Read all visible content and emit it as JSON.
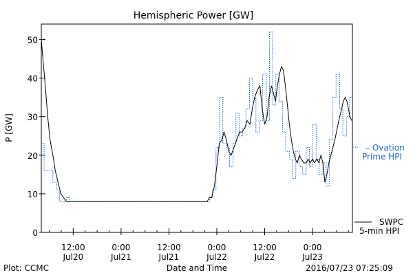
{
  "chart_data": {
    "type": "line",
    "title": "Hemispheric Power [GW]",
    "xlabel": "Date and Time",
    "ylabel": "P [GW]",
    "ylim": [
      0,
      54
    ],
    "xlim": [
      4,
      82
    ],
    "y_ticks": [
      0,
      10,
      20,
      30,
      40,
      50
    ],
    "x_ticks": [
      {
        "x": 12,
        "time": "12:00",
        "date": "Jul20"
      },
      {
        "x": 24,
        "time": "0:00",
        "date": "Jul21"
      },
      {
        "x": 36,
        "time": "12:00",
        "date": "Jul21"
      },
      {
        "x": 48,
        "time": "0:00",
        "date": "Jul22"
      },
      {
        "x": 60,
        "time": "12:00",
        "date": "Jul22"
      },
      {
        "x": 72,
        "time": "0:00",
        "date": "Jul23"
      }
    ],
    "series": [
      {
        "name": "Ovation Prime HPI",
        "color": "#1f66c8",
        "style": "dotted-step",
        "x": [
          4,
          4.7,
          6.9,
          7.8,
          8.6,
          10.3,
          11.0,
          45.3,
          46.2,
          46.9,
          47.8,
          48.7,
          49.5,
          50.4,
          51.2,
          52.1,
          52.8,
          53.6,
          54.5,
          55.3,
          56.2,
          57.0,
          57.8,
          58.7,
          59.5,
          60.4,
          61.2,
          62.0,
          62.8,
          63.6,
          64.5,
          65.3,
          66.2,
          67.0,
          67.8,
          68.7,
          69.5,
          70.4,
          71.2,
          72.0,
          72.9,
          73.7,
          74.6,
          75.4,
          76.2,
          77.1,
          77.9,
          78.8,
          79.6,
          80.5,
          81.3
        ],
        "y": [
          23,
          16,
          13,
          11,
          8,
          9,
          8,
          8,
          9,
          11,
          22,
          35,
          23,
          22,
          17,
          23,
          31,
          25,
          27,
          32,
          40,
          35,
          26,
          29,
          41,
          29,
          52,
          33,
          41,
          34,
          26,
          21,
          19,
          14,
          21,
          17,
          15,
          22,
          17,
          28,
          19,
          15,
          18,
          12,
          24,
          35,
          41,
          32,
          25,
          30,
          35
        ]
      },
      {
        "name": "SWPC 5-min HPI",
        "color": "#000000",
        "style": "solid",
        "x": [
          4,
          4.4,
          5.0,
          5.6,
          6.2,
          6.9,
          7.5,
          8.2,
          8.9,
          9.6,
          10.3,
          11.0,
          11.8,
          45.6,
          46.1,
          46.7,
          47.4,
          48.1,
          48.6,
          49.3,
          49.8,
          50.4,
          51.0,
          51.6,
          52.3,
          53.0,
          53.7,
          54.3,
          55.0,
          55.6,
          56.3,
          56.9,
          57.5,
          58.2,
          58.8,
          59.4,
          60.0,
          60.6,
          61.1,
          61.7,
          62.2,
          62.7,
          63.2,
          63.7,
          64.2,
          64.7,
          65.2,
          65.7,
          66.2,
          66.7,
          67.2,
          67.7,
          68.2,
          68.7,
          69.2,
          69.8,
          70.4,
          70.9,
          71.4,
          72.0,
          72.5,
          73.1,
          73.6,
          74.1,
          74.6,
          75.1,
          75.6,
          76.1,
          76.6,
          77.1,
          77.6,
          78.0,
          78.4,
          78.8,
          79.3,
          79.7,
          80.2,
          80.6,
          81.0,
          81.4,
          81.8
        ],
        "y": [
          50,
          45,
          38,
          30,
          24,
          20,
          16,
          13,
          10,
          9,
          8,
          8,
          8,
          8,
          9,
          9,
          12,
          18,
          23,
          24,
          26,
          24,
          21,
          20,
          22,
          24,
          26,
          26,
          27,
          29,
          28,
          32,
          35,
          37,
          38,
          32,
          28,
          30,
          35,
          38,
          36,
          34,
          38,
          41,
          43,
          42,
          38,
          33,
          28,
          24,
          21,
          19,
          18,
          20,
          19,
          18,
          18,
          19,
          18,
          19,
          18,
          19,
          18,
          20,
          18,
          13,
          15,
          18,
          20,
          22,
          24,
          26,
          28,
          30,
          32,
          34,
          35,
          34,
          32,
          30,
          29
        ]
      }
    ],
    "legend_position": "right",
    "grid": false
  },
  "legend": {
    "ovation_line1": "– Ovation",
    "ovation_line2": "Prime HPI",
    "swpc_line1": "SWPC",
    "swpc_line2": "5-min HPI"
  },
  "footer": {
    "left": "Plot: CCMC",
    "right": "2016/07/23 07:25:09"
  }
}
